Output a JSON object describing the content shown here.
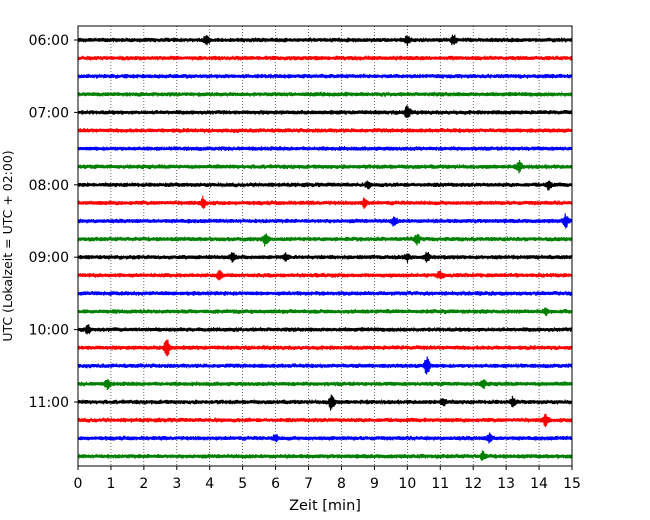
{
  "chart_data": {
    "type": "line",
    "description_kind": "helicorder",
    "xlabel": "Zeit  [min]",
    "ylabel": "UTC (Lokalzeit = UTC + 02:00)",
    "xlim": [
      0,
      15
    ],
    "x_ticks": [
      "0",
      "1",
      "2",
      "3",
      "4",
      "5",
      "6",
      "7",
      "8",
      "9",
      "10",
      "11",
      "12",
      "13",
      "14",
      "15"
    ],
    "y_ticks": [
      "06:00",
      "07:00",
      "08:00",
      "09:00",
      "10:00",
      "11:00"
    ],
    "grid": "vertical dotted at each minute",
    "trace_colors": [
      "#000000",
      "#ff0000",
      "#0000ff",
      "#008000"
    ],
    "trace_start_times": [
      "06:00",
      "06:15",
      "06:30",
      "06:45",
      "07:00",
      "07:15",
      "07:30",
      "07:45",
      "08:00",
      "08:15",
      "08:30",
      "08:45",
      "09:00",
      "09:15",
      "09:30",
      "09:45",
      "10:00",
      "10:15",
      "10:30",
      "10:45",
      "11:00",
      "11:15",
      "11:30",
      "11:45"
    ],
    "events": [
      {
        "trace": 0,
        "x": 3.9,
        "amp": 4
      },
      {
        "trace": 0,
        "x": 10.0,
        "amp": 4
      },
      {
        "trace": 0,
        "x": 11.4,
        "amp": 5
      },
      {
        "trace": 4,
        "x": 10.0,
        "amp": 7
      },
      {
        "trace": 7,
        "x": 13.4,
        "amp": 5
      },
      {
        "trace": 8,
        "x": 8.8,
        "amp": 3
      },
      {
        "trace": 8,
        "x": 14.3,
        "amp": 4
      },
      {
        "trace": 9,
        "x": 3.8,
        "amp": 5
      },
      {
        "trace": 9,
        "x": 8.7,
        "amp": 4
      },
      {
        "trace": 10,
        "x": 9.6,
        "amp": 4
      },
      {
        "trace": 10,
        "x": 14.8,
        "amp": 6
      },
      {
        "trace": 11,
        "x": 5.7,
        "amp": 7
      },
      {
        "trace": 11,
        "x": 10.3,
        "amp": 5
      },
      {
        "trace": 12,
        "x": 4.7,
        "amp": 4
      },
      {
        "trace": 12,
        "x": 6.3,
        "amp": 4
      },
      {
        "trace": 12,
        "x": 10.0,
        "amp": 4
      },
      {
        "trace": 12,
        "x": 10.6,
        "amp": 4
      },
      {
        "trace": 13,
        "x": 4.3,
        "amp": 4
      },
      {
        "trace": 13,
        "x": 11.0,
        "amp": 4
      },
      {
        "trace": 15,
        "x": 14.2,
        "amp": 3
      },
      {
        "trace": 16,
        "x": 0.3,
        "amp": 4
      },
      {
        "trace": 17,
        "x": 2.7,
        "amp": 9
      },
      {
        "trace": 18,
        "x": 10.6,
        "amp": 9
      },
      {
        "trace": 19,
        "x": 0.9,
        "amp": 4
      },
      {
        "trace": 19,
        "x": 12.3,
        "amp": 4
      },
      {
        "trace": 20,
        "x": 7.7,
        "amp": 8
      },
      {
        "trace": 20,
        "x": 11.1,
        "amp": 4
      },
      {
        "trace": 20,
        "x": 13.2,
        "amp": 4
      },
      {
        "trace": 21,
        "x": 14.2,
        "amp": 6
      },
      {
        "trace": 22,
        "x": 6.0,
        "amp": 3
      },
      {
        "trace": 22,
        "x": 12.5,
        "amp": 4
      },
      {
        "trace": 23,
        "x": 12.3,
        "amp": 4
      }
    ]
  }
}
